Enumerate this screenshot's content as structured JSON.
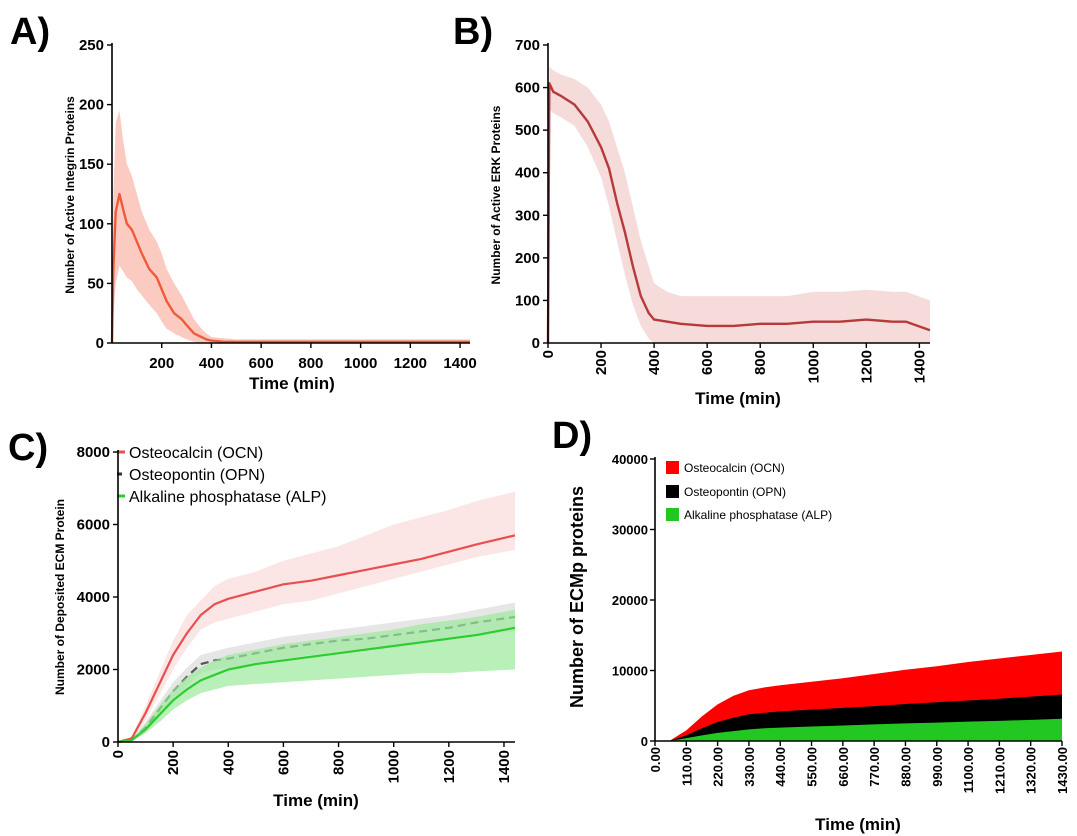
{
  "chart_data": [
    {
      "panel": "A)",
      "type": "line",
      "xlabel": "Time (min)",
      "ylabel": "Number of Active Integrin Proteins",
      "xlim": [
        0,
        1440
      ],
      "ylim": [
        0,
        250
      ],
      "xticks": [
        200,
        400,
        600,
        800,
        1000,
        1200,
        1400
      ],
      "yticks": [
        0,
        50,
        100,
        150,
        200,
        250
      ],
      "color": "#f05a3a",
      "band_color": "#f9b5a6",
      "series": [
        {
          "x": [
            0,
            5,
            15,
            30,
            45,
            60,
            80,
            100,
            120,
            150,
            180,
            200,
            220,
            250,
            280,
            300,
            330,
            360,
            380,
            400,
            450,
            500,
            600,
            700,
            800,
            900,
            1000,
            1100,
            1200,
            1300,
            1440
          ],
          "y": [
            0,
            60,
            110,
            125,
            112,
            100,
            95,
            85,
            75,
            62,
            55,
            45,
            35,
            25,
            20,
            15,
            8,
            5,
            3,
            2,
            1,
            1,
            1,
            1,
            1,
            1,
            1,
            1,
            1,
            1,
            1
          ],
          "band_upper": [
            0,
            120,
            185,
            195,
            170,
            150,
            140,
            125,
            110,
            95,
            85,
            75,
            62,
            50,
            40,
            32,
            20,
            12,
            8,
            5,
            4,
            3,
            3,
            3,
            3,
            3,
            3,
            3,
            3,
            3,
            3
          ],
          "band_lower": [
            0,
            20,
            50,
            65,
            60,
            55,
            52,
            45,
            40,
            32,
            25,
            18,
            12,
            8,
            5,
            3,
            1,
            0,
            0,
            0,
            0,
            0,
            0,
            0,
            0,
            0,
            0,
            0,
            0,
            0,
            0
          ]
        }
      ]
    },
    {
      "panel": "B)",
      "type": "line",
      "xlabel": "Time (min)",
      "ylabel": "Number of Active ERK Proteins",
      "xlim": [
        0,
        1440
      ],
      "ylim": [
        0,
        700
      ],
      "xticks": [
        0,
        200,
        400,
        600,
        800,
        1000,
        1200,
        1400
      ],
      "yticks": [
        0,
        100,
        200,
        300,
        400,
        500,
        600,
        700
      ],
      "color": "#b73a3a",
      "band_color": "#f2cccc",
      "series": [
        {
          "x": [
            0,
            5,
            20,
            50,
            100,
            150,
            200,
            230,
            260,
            290,
            320,
            350,
            380,
            400,
            450,
            500,
            600,
            700,
            800,
            900,
            1000,
            1100,
            1200,
            1300,
            1350,
            1440
          ],
          "y": [
            0,
            610,
            590,
            580,
            560,
            520,
            460,
            410,
            330,
            260,
            180,
            110,
            70,
            55,
            50,
            45,
            40,
            40,
            45,
            45,
            50,
            50,
            55,
            50,
            50,
            30
          ],
          "band_upper": [
            0,
            650,
            640,
            630,
            620,
            600,
            560,
            520,
            460,
            400,
            320,
            240,
            180,
            140,
            120,
            110,
            110,
            110,
            110,
            110,
            120,
            120,
            125,
            120,
            120,
            100
          ],
          "band_lower": [
            0,
            550,
            540,
            530,
            510,
            460,
            390,
            320,
            240,
            160,
            90,
            40,
            10,
            0,
            0,
            0,
            0,
            0,
            0,
            0,
            0,
            0,
            0,
            0,
            0,
            0
          ]
        }
      ]
    },
    {
      "panel": "C)",
      "type": "line",
      "xlabel": "Time (min)",
      "ylabel": "Number of Deposited ECM Protein",
      "xlim": [
        0,
        1440
      ],
      "ylim": [
        0,
        8000
      ],
      "xticks": [
        0,
        200,
        400,
        600,
        800,
        1000,
        1200,
        1400
      ],
      "yticks": [
        0,
        2000,
        4000,
        6000,
        8000
      ],
      "legend": "top-left",
      "series": [
        {
          "name": "Osteocalcin (OCN)",
          "color": "#e85050",
          "band_color": "#fadada",
          "dash": "",
          "x": [
            0,
            50,
            100,
            150,
            200,
            250,
            300,
            350,
            400,
            500,
            600,
            700,
            800,
            900,
            1000,
            1100,
            1200,
            1300,
            1440
          ],
          "y": [
            0,
            100,
            800,
            1600,
            2400,
            3000,
            3500,
            3800,
            3950,
            4150,
            4350,
            4450,
            4600,
            4750,
            4900,
            5050,
            5250,
            5450,
            5700
          ],
          "band_upper": [
            0,
            150,
            1000,
            1900,
            2800,
            3500,
            3900,
            4300,
            4500,
            4700,
            5000,
            5200,
            5400,
            5700,
            6000,
            6200,
            6400,
            6650,
            6900
          ],
          "band_lower": [
            0,
            50,
            600,
            1300,
            2000,
            2600,
            3100,
            3300,
            3400,
            3600,
            3800,
            3900,
            4100,
            4300,
            4500,
            4700,
            4900,
            5100,
            5300
          ]
        },
        {
          "name": "Osteopontin (OPN)",
          "color": "#555555",
          "band_color": "#dcdcdc",
          "dash": "8,5",
          "x": [
            0,
            50,
            100,
            150,
            200,
            250,
            300,
            350,
            400,
            500,
            600,
            700,
            800,
            900,
            1000,
            1100,
            1200,
            1300,
            1440
          ],
          "y": [
            0,
            50,
            400,
            900,
            1400,
            1800,
            2150,
            2250,
            2300,
            2450,
            2600,
            2700,
            2800,
            2850,
            2950,
            3050,
            3150,
            3300,
            3450
          ],
          "band_upper": [
            0,
            80,
            550,
            1100,
            1650,
            2050,
            2400,
            2500,
            2600,
            2750,
            2900,
            3000,
            3100,
            3200,
            3300,
            3400,
            3500,
            3650,
            3850
          ],
          "band_lower": [
            0,
            20,
            250,
            700,
            1150,
            1550,
            1900,
            2000,
            2050,
            2150,
            2300,
            2400,
            2500,
            2550,
            2600,
            2700,
            2800,
            2950,
            3050
          ]
        },
        {
          "name": "Alkaline phosphatase (ALP)",
          "color": "#2ecc2e",
          "band_color": "#9be89b",
          "dash": "",
          "x": [
            0,
            50,
            100,
            150,
            200,
            250,
            300,
            350,
            400,
            500,
            600,
            700,
            800,
            900,
            1000,
            1100,
            1200,
            1300,
            1440
          ],
          "y": [
            0,
            50,
            350,
            750,
            1150,
            1450,
            1700,
            1850,
            2000,
            2150,
            2250,
            2350,
            2450,
            2550,
            2650,
            2750,
            2850,
            2950,
            3150
          ],
          "band_upper": [
            0,
            80,
            500,
            1000,
            1450,
            1800,
            2050,
            2250,
            2400,
            2550,
            2700,
            2800,
            2900,
            3000,
            3100,
            3250,
            3350,
            3450,
            3650
          ],
          "band_lower": [
            0,
            20,
            250,
            550,
            900,
            1150,
            1350,
            1450,
            1550,
            1600,
            1650,
            1700,
            1750,
            1800,
            1850,
            1900,
            1900,
            1950,
            2000
          ]
        }
      ]
    },
    {
      "panel": "D)",
      "type": "area",
      "xlabel": "Time (min)",
      "ylabel": "Number of ECMp proteins",
      "xlim": [
        0,
        1430
      ],
      "ylim": [
        0,
        40000
      ],
      "xticks": [
        "0.00",
        "110.00",
        "220.00",
        "330.00",
        "440.00",
        "550.00",
        "660.00",
        "770.00",
        "880.00",
        "990.00",
        "1100.00",
        "1210.00",
        "1320.00",
        "1430.00"
      ],
      "yticks": [
        0,
        10000,
        20000,
        30000,
        40000
      ],
      "legend": "top-left",
      "series": [
        {
          "name": "Osteocalcin (OCN)",
          "color": "#ff0000",
          "x": [
            0,
            50,
            110,
            165,
            220,
            275,
            330,
            385,
            440,
            550,
            660,
            770,
            880,
            990,
            1100,
            1210,
            1320,
            1430
          ],
          "y": [
            0,
            0,
            1500,
            3500,
            5200,
            6400,
            7200,
            7600,
            7900,
            8400,
            8900,
            9500,
            10100,
            10600,
            11200,
            11700,
            12200,
            12700
          ]
        },
        {
          "name": "Osteopontin (OPN)",
          "color": "#000000",
          "x": [
            0,
            50,
            110,
            165,
            220,
            275,
            330,
            385,
            440,
            550,
            660,
            770,
            880,
            990,
            1100,
            1210,
            1320,
            1430
          ],
          "y": [
            0,
            0,
            800,
            1800,
            2700,
            3300,
            3800,
            4000,
            4200,
            4450,
            4700,
            4950,
            5250,
            5500,
            5750,
            6000,
            6300,
            6600
          ]
        },
        {
          "name": "Alkaline phosphatase (ALP)",
          "color": "#22c722",
          "x": [
            0,
            50,
            110,
            165,
            220,
            275,
            330,
            385,
            440,
            550,
            660,
            770,
            880,
            990,
            1100,
            1210,
            1320,
            1430
          ],
          "y": [
            0,
            0,
            400,
            800,
            1150,
            1400,
            1650,
            1800,
            1900,
            2050,
            2200,
            2350,
            2500,
            2600,
            2750,
            2850,
            3000,
            3150
          ]
        }
      ]
    }
  ]
}
